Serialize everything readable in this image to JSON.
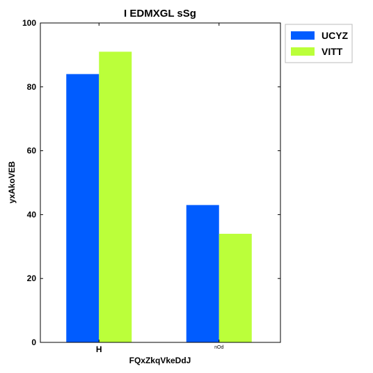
{
  "chart_data": {
    "type": "bar",
    "title": "I EDMXGL sSg",
    "xlabel": "FQxZkqVkeDdJ",
    "ylabel": "yxAkoVEB",
    "categories": [
      "H",
      "nOd"
    ],
    "series": [
      {
        "name": "UCYZ",
        "color": "#005cff",
        "values": [
          84,
          43
        ]
      },
      {
        "name": "VITT",
        "color": "#bbff3a",
        "values": [
          91,
          34
        ]
      }
    ],
    "ylim": [
      0,
      100
    ],
    "yticks": [
      0,
      20,
      40,
      60,
      80,
      100
    ],
    "grid": false,
    "legend_position": "outside-top-right"
  }
}
